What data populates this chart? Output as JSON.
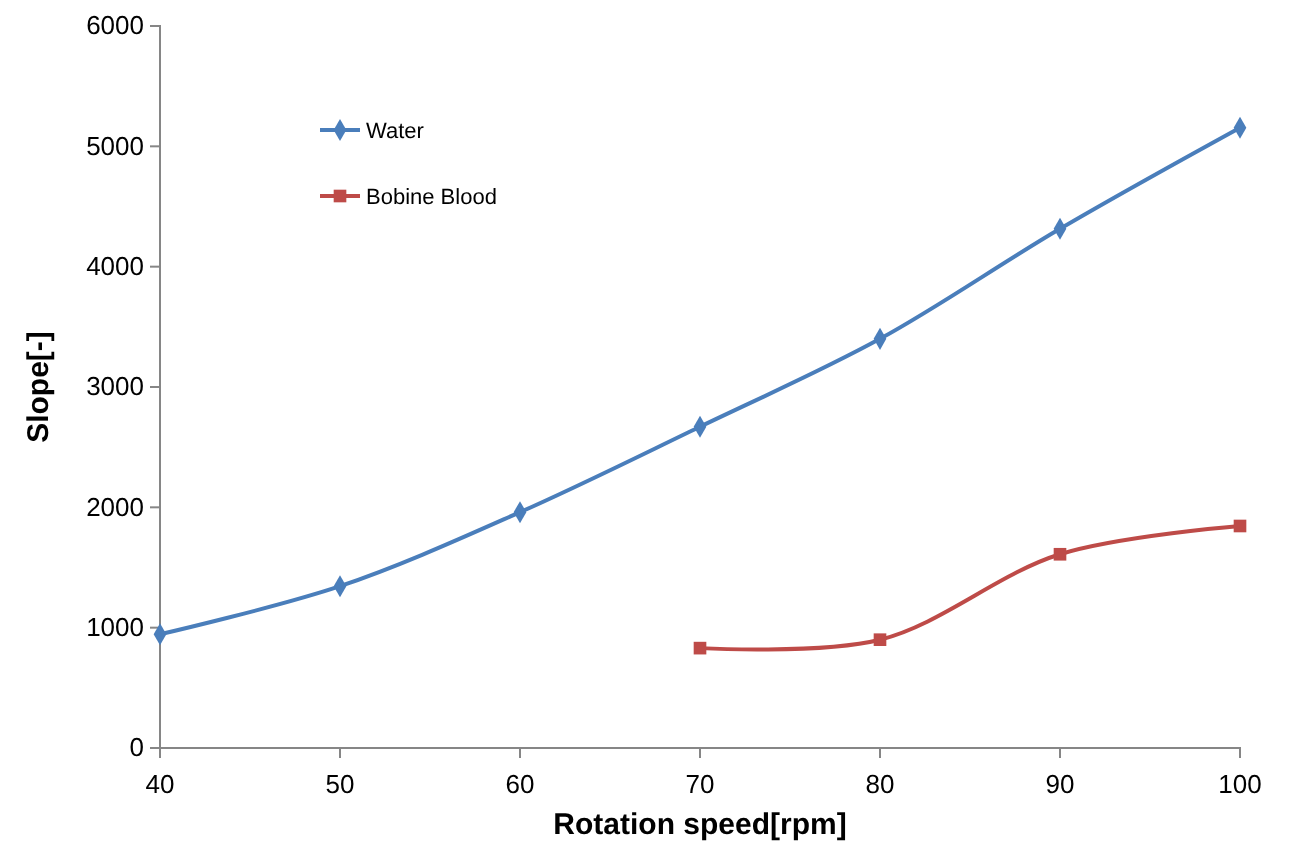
{
  "chart_data": {
    "type": "line",
    "xlabel": "Rotation speed[rpm]",
    "ylabel": "Slope[-]",
    "xlim": [
      40,
      100
    ],
    "xticks": [
      40,
      50,
      60,
      70,
      80,
      90,
      100
    ],
    "ylim": [
      0,
      6000
    ],
    "yticks": [
      0,
      1000,
      2000,
      3000,
      4000,
      5000,
      6000
    ],
    "grid": false,
    "legend": "top left",
    "line_style": "solid",
    "series": [
      {
        "name": "Water",
        "color": "#4a7ebb",
        "marker": "diamond",
        "x": [
          40,
          50,
          60,
          70,
          80,
          90,
          100
        ],
        "values": [
          945,
          1345,
          1960,
          2670,
          3400,
          4315,
          5155
        ]
      },
      {
        "name": "Bobine Blood",
        "color": "#be4b48",
        "marker": "square",
        "x": [
          70,
          80,
          90,
          100
        ],
        "values": [
          830,
          900,
          1610,
          1845
        ]
      }
    ]
  }
}
